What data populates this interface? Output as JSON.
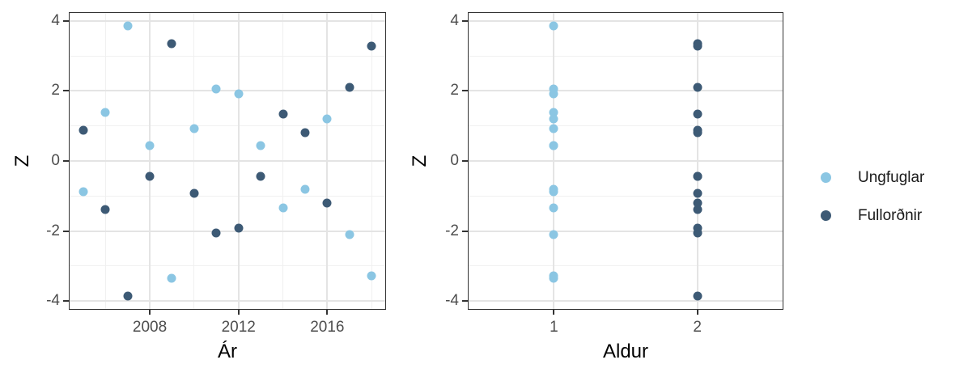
{
  "colors": {
    "ungfuglar": "#8BC6E3",
    "fullordnir": "#3D5A75",
    "panel_border": "#333333",
    "grid_major": "#E4E4E4",
    "grid_minor": "#F0F0F0",
    "tick_mark": "#333333",
    "tick_label": "#4D4D4D",
    "axis_title": "#000000",
    "background": "#FFFFFF"
  },
  "legend": {
    "items": [
      {
        "label": "Ungfuglar",
        "color": "#8BC6E3"
      },
      {
        "label": "Fullorðnir",
        "color": "#3D5A75"
      }
    ]
  },
  "chart_data": [
    {
      "type": "scatter",
      "panel": "left",
      "title": "",
      "xlabel": "Ár",
      "ylabel": "Z",
      "xlim": [
        2004.35,
        2018.65
      ],
      "ylim": [
        -4.25,
        4.25
      ],
      "grid": true,
      "legend_position": "right-of-figure",
      "x_ticks": {
        "values": [
          2008,
          2012,
          2016
        ],
        "labels": [
          "2008",
          "2012",
          "2016"
        ]
      },
      "x_minor_gridlines": [
        2006,
        2010,
        2014,
        2018
      ],
      "y_ticks": {
        "values": [
          4,
          2,
          0,
          -2,
          -4
        ],
        "labels": [
          "4",
          "2",
          "0",
          "-2",
          "-4"
        ]
      },
      "y_minor_gridlines": [
        3,
        1,
        -1,
        -3
      ],
      "series": [
        {
          "name": "Ungfuglar",
          "x": [
            2005,
            2006,
            2007,
            2008,
            2009,
            2010,
            2011,
            2012,
            2013,
            2014,
            2015,
            2016,
            2017,
            2018
          ],
          "y": [
            -0.87,
            1.39,
            3.86,
            0.44,
            -3.34,
            0.92,
            2.05,
            1.91,
            0.43,
            -1.33,
            -0.8,
            1.21,
            -2.1,
            -3.27
          ]
        },
        {
          "name": "Fullorðnir",
          "x": [
            2005,
            2006,
            2007,
            2008,
            2009,
            2010,
            2011,
            2012,
            2013,
            2014,
            2015,
            2016,
            2017,
            2018
          ],
          "y": [
            0.87,
            -1.39,
            -3.86,
            -0.44,
            3.34,
            -0.92,
            -2.05,
            -1.91,
            -0.43,
            1.33,
            0.8,
            -1.21,
            2.1,
            3.27
          ]
        }
      ]
    },
    {
      "type": "scatter",
      "panel": "right",
      "title": "",
      "xlabel": "Aldur",
      "ylabel": "Z",
      "xlim": [
        0.4,
        2.6
      ],
      "ylim": [
        -4.25,
        4.25
      ],
      "grid": true,
      "x_ticks": {
        "values": [
          1,
          2
        ],
        "labels": [
          "1",
          "2"
        ]
      },
      "x_minor_gridlines": [],
      "y_ticks": {
        "values": [
          4,
          2,
          0,
          -2,
          -4
        ],
        "labels": [
          "4",
          "2",
          "0",
          "-2",
          "-4"
        ]
      },
      "y_minor_gridlines": [
        3,
        1,
        -1,
        -3
      ],
      "series": [
        {
          "name": "Ungfuglar",
          "x": [
            1,
            1,
            1,
            1,
            1,
            1,
            1,
            1,
            1,
            1,
            1,
            1,
            1,
            1
          ],
          "y": [
            -0.87,
            1.39,
            3.86,
            0.44,
            -3.34,
            0.92,
            2.05,
            1.91,
            0.43,
            -1.33,
            -0.8,
            1.21,
            -2.1,
            -3.27
          ]
        },
        {
          "name": "Fullorðnir",
          "x": [
            2,
            2,
            2,
            2,
            2,
            2,
            2,
            2,
            2,
            2,
            2,
            2,
            2,
            2
          ],
          "y": [
            0.87,
            -1.39,
            -3.86,
            -0.44,
            3.34,
            -0.92,
            -2.05,
            -1.91,
            -0.43,
            1.33,
            0.8,
            -1.21,
            2.1,
            3.27
          ]
        }
      ]
    }
  ]
}
